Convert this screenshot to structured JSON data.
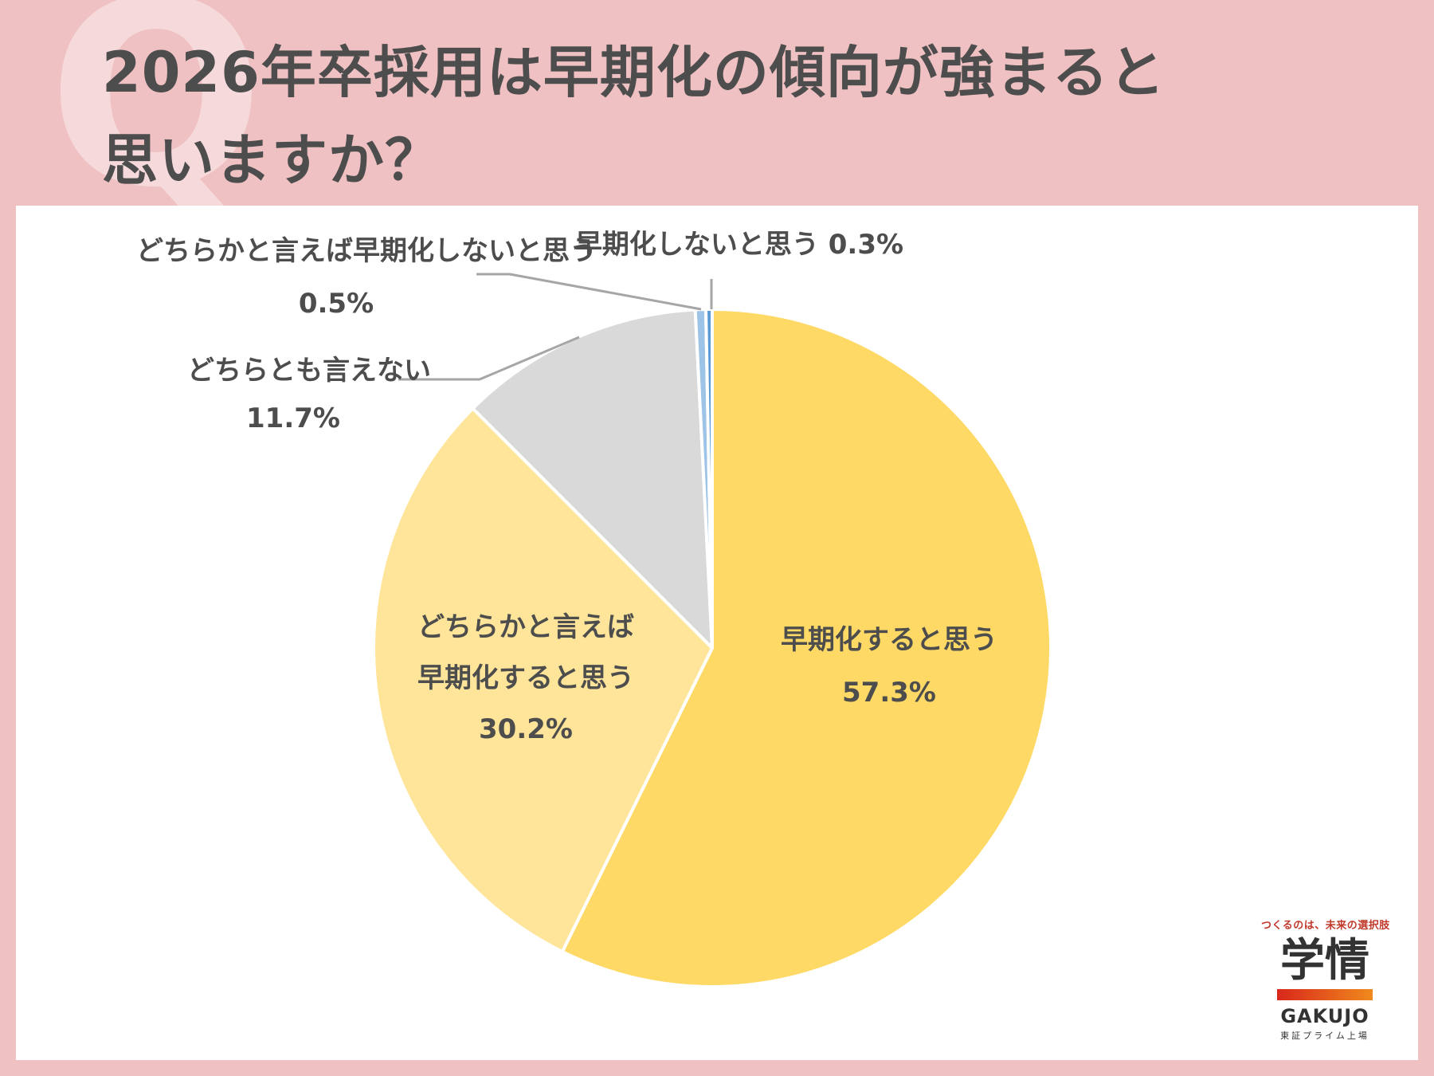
{
  "header": {
    "q_mark": "Q",
    "title_line1": "2026年卒採用は早期化の傾向が強まると",
    "title_line2": "思いますか？"
  },
  "chart_data": {
    "type": "pie",
    "title": "2026年卒採用は早期化の傾向が強まると思いますか？",
    "slices": [
      {
        "label_lines": [
          "早期化すると思う"
        ],
        "value": 57.3,
        "value_label": "57.3%",
        "color": "#fed966"
      },
      {
        "label_lines": [
          "どちらかと言えば",
          "早期化すると思う"
        ],
        "value": 30.2,
        "value_label": "30.2%",
        "color": "#ffe599"
      },
      {
        "label_lines": [
          "どちらとも言えない"
        ],
        "value": 11.7,
        "value_label": "11.7%",
        "color": "#d9d9d9"
      },
      {
        "label_lines": [
          "どちらかと言えば早期化しないと思う"
        ],
        "value": 0.5,
        "value_label": "0.5%",
        "color": "#9dc3e6"
      },
      {
        "label_lines": [
          "早期化しないと思う 0.3%"
        ],
        "value": 0.3,
        "value_label": "",
        "color": "#5b9bd5"
      }
    ]
  },
  "logo": {
    "tagline": "つくるのは、未来の選択肢",
    "kanji": "学情",
    "name": "GAKUJO",
    "sub": "東証プライム上場"
  }
}
